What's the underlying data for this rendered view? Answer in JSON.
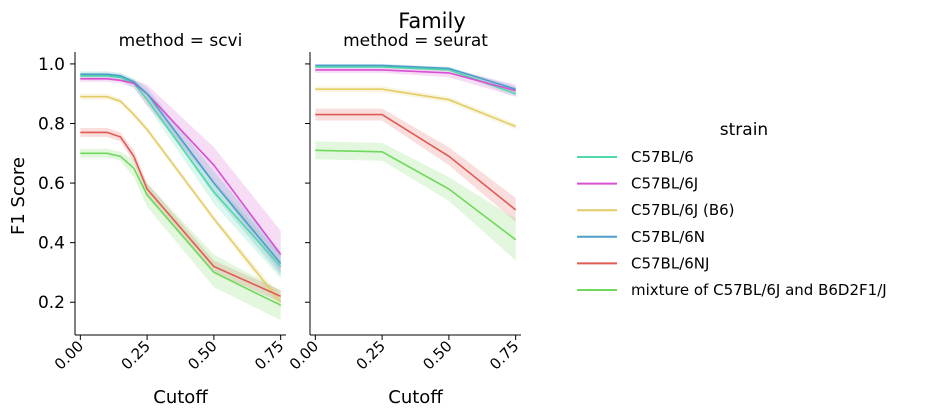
{
  "chart_data": {
    "type": "line",
    "suptitle": "Family",
    "ylabel": "F1 Score",
    "xlabel": "Cutoff",
    "xlim": [
      -0.02,
      0.77
    ],
    "ylim": [
      0.09,
      1.04
    ],
    "xticks": [
      "0.00",
      "0.25",
      "0.50",
      "0.75"
    ],
    "xtick_values": [
      0.0,
      0.25,
      0.5,
      0.75
    ],
    "yticks": [
      "0.2",
      "0.4",
      "0.6",
      "0.8",
      "1.0"
    ],
    "ytick_values": [
      0.2,
      0.4,
      0.6,
      0.8,
      1.0
    ],
    "grid": false,
    "legend": {
      "title": "strain",
      "position": "right",
      "entries": [
        {
          "label": "C57BL/6",
          "color": "#4fd9a7"
        },
        {
          "label": "C57BL/6J",
          "color": "#d94fd3"
        },
        {
          "label": "C57BL/6J (B6)",
          "color": "#e3cc66"
        },
        {
          "label": "C57BL/6N",
          "color": "#4ba0c8"
        },
        {
          "label": "C57BL/6NJ",
          "color": "#e05a53"
        },
        {
          "label": "mixture of C57BL/6J and B6D2F1/J",
          "color": "#6ed95a"
        }
      ]
    },
    "panels": [
      {
        "title": "method = scvi",
        "series": [
          {
            "name": "C57BL/6",
            "color": "#4fd9a7",
            "x": [
              0,
              0.05,
              0.1,
              0.15,
              0.2,
              0.25,
              0.5,
              0.75
            ],
            "y": [
              0.96,
              0.96,
              0.96,
              0.955,
              0.935,
              0.88,
              0.57,
              0.32
            ],
            "lo": [
              0.95,
              0.95,
              0.95,
              0.945,
              0.92,
              0.86,
              0.53,
              0.28
            ],
            "hi": [
              0.97,
              0.97,
              0.97,
              0.965,
              0.95,
              0.9,
              0.61,
              0.36
            ]
          },
          {
            "name": "C57BL/6J",
            "color": "#d94fd3",
            "x": [
              0,
              0.05,
              0.1,
              0.15,
              0.2,
              0.25,
              0.5,
              0.75
            ],
            "y": [
              0.95,
              0.95,
              0.95,
              0.945,
              0.935,
              0.9,
              0.66,
              0.36
            ],
            "lo": [
              0.94,
              0.94,
              0.94,
              0.935,
              0.92,
              0.86,
              0.6,
              0.3
            ],
            "hi": [
              0.96,
              0.96,
              0.96,
              0.955,
              0.945,
              0.93,
              0.72,
              0.44
            ]
          },
          {
            "name": "C57BL/6J (B6)",
            "color": "#e3cc66",
            "x": [
              0,
              0.05,
              0.1,
              0.15,
              0.2,
              0.25,
              0.5,
              0.75
            ],
            "y": [
              0.89,
              0.89,
              0.89,
              0.875,
              0.83,
              0.78,
              0.48,
              0.2
            ],
            "lo": [
              0.88,
              0.88,
              0.88,
              0.865,
              0.82,
              0.77,
              0.47,
              0.18
            ],
            "hi": [
              0.9,
              0.9,
              0.9,
              0.885,
              0.84,
              0.79,
              0.49,
              0.22
            ]
          },
          {
            "name": "C57BL/6N",
            "color": "#4ba0c8",
            "x": [
              0,
              0.05,
              0.1,
              0.15,
              0.2,
              0.25,
              0.5,
              0.75
            ],
            "y": [
              0.965,
              0.965,
              0.965,
              0.96,
              0.94,
              0.9,
              0.6,
              0.33
            ],
            "lo": [
              0.955,
              0.955,
              0.955,
              0.95,
              0.93,
              0.88,
              0.56,
              0.29
            ],
            "hi": [
              0.975,
              0.975,
              0.975,
              0.97,
              0.95,
              0.92,
              0.64,
              0.37
            ]
          },
          {
            "name": "C57BL/6NJ",
            "color": "#e05a53",
            "x": [
              0,
              0.05,
              0.1,
              0.15,
              0.2,
              0.25,
              0.5,
              0.75
            ],
            "y": [
              0.77,
              0.77,
              0.77,
              0.755,
              0.69,
              0.58,
              0.32,
              0.22
            ],
            "lo": [
              0.755,
              0.755,
              0.755,
              0.74,
              0.67,
              0.56,
              0.3,
              0.2
            ],
            "hi": [
              0.785,
              0.785,
              0.785,
              0.77,
              0.71,
              0.6,
              0.34,
              0.24
            ]
          },
          {
            "name": "mixture of C57BL/6J and B6D2F1/J",
            "color": "#6ed95a",
            "x": [
              0,
              0.05,
              0.1,
              0.15,
              0.2,
              0.25,
              0.5,
              0.75
            ],
            "y": [
              0.7,
              0.7,
              0.7,
              0.69,
              0.65,
              0.56,
              0.3,
              0.19
            ],
            "lo": [
              0.685,
              0.685,
              0.685,
              0.675,
              0.62,
              0.52,
              0.25,
              0.14
            ],
            "hi": [
              0.715,
              0.715,
              0.715,
              0.705,
              0.68,
              0.6,
              0.36,
              0.24
            ]
          }
        ]
      },
      {
        "title": "method = seurat",
        "series": [
          {
            "name": "C57BL/6",
            "color": "#4fd9a7",
            "x": [
              0,
              0.25,
              0.5,
              0.75
            ],
            "y": [
              0.99,
              0.99,
              0.98,
              0.9
            ],
            "lo": [
              0.985,
              0.985,
              0.975,
              0.89
            ],
            "hi": [
              0.995,
              0.995,
              0.985,
              0.91
            ]
          },
          {
            "name": "C57BL/6J",
            "color": "#d94fd3",
            "x": [
              0,
              0.25,
              0.5,
              0.75
            ],
            "y": [
              0.98,
              0.98,
              0.97,
              0.91
            ],
            "lo": [
              0.97,
              0.97,
              0.955,
              0.89
            ],
            "hi": [
              0.99,
              0.99,
              0.985,
              0.93
            ]
          },
          {
            "name": "C57BL/6J (B6)",
            "color": "#e3cc66",
            "x": [
              0,
              0.25,
              0.5,
              0.75
            ],
            "y": [
              0.915,
              0.915,
              0.88,
              0.79
            ],
            "lo": [
              0.905,
              0.905,
              0.87,
              0.78
            ],
            "hi": [
              0.925,
              0.925,
              0.89,
              0.8
            ]
          },
          {
            "name": "C57BL/6N",
            "color": "#4ba0c8",
            "x": [
              0,
              0.25,
              0.5,
              0.75
            ],
            "y": [
              0.995,
              0.995,
              0.985,
              0.915
            ],
            "lo": [
              0.99,
              0.99,
              0.98,
              0.905
            ],
            "hi": [
              1.0,
              1.0,
              0.99,
              0.925
            ]
          },
          {
            "name": "C57BL/6NJ",
            "color": "#e05a53",
            "x": [
              0,
              0.25,
              0.5,
              0.75
            ],
            "y": [
              0.83,
              0.83,
              0.69,
              0.51
            ],
            "lo": [
              0.81,
              0.81,
              0.66,
              0.47
            ],
            "hi": [
              0.85,
              0.85,
              0.72,
              0.55
            ]
          },
          {
            "name": "mixture of C57BL/6J and B6D2F1/J",
            "color": "#6ed95a",
            "x": [
              0,
              0.25,
              0.5,
              0.75
            ],
            "y": [
              0.71,
              0.705,
              0.58,
              0.41
            ],
            "lo": [
              0.68,
              0.675,
              0.54,
              0.34
            ],
            "hi": [
              0.74,
              0.735,
              0.62,
              0.48
            ]
          }
        ]
      }
    ]
  }
}
